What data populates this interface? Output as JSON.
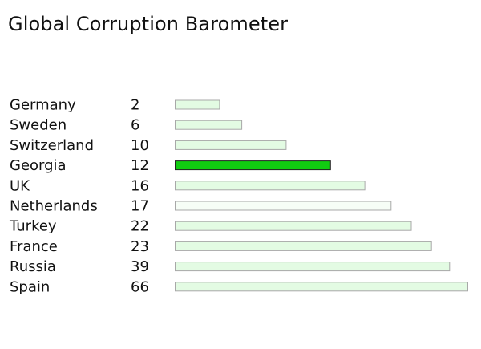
{
  "chart_data": {
    "type": "bar",
    "orientation": "horizontal",
    "title": "Global Corruption Barometer",
    "categories": [
      "Germany",
      "Sweden",
      "Switzerland",
      "Georgia",
      "UK",
      "Netherlands",
      "Turkey",
      "France",
      "Russia",
      "Spain"
    ],
    "rank_labels": [
      "2",
      "6",
      "10",
      "12",
      "16",
      "17",
      "22",
      "23",
      "39",
      "66"
    ],
    "values": [
      22,
      33,
      55,
      77,
      94,
      107,
      117,
      127,
      136,
      145
    ],
    "value_note": "bar lengths in chart units (bars have no printed scale)",
    "xlim": [
      0,
      145
    ],
    "grid": false,
    "legend": "none",
    "highlight": "Georgia",
    "colors": {
      "bar_fill": "#e3fbe3",
      "bar_stroke": "#a8a8a8",
      "highlight_fill": "#11cc11",
      "highlight_stroke": "#222222",
      "netherlands_fill": "#f6fdf6"
    }
  }
}
